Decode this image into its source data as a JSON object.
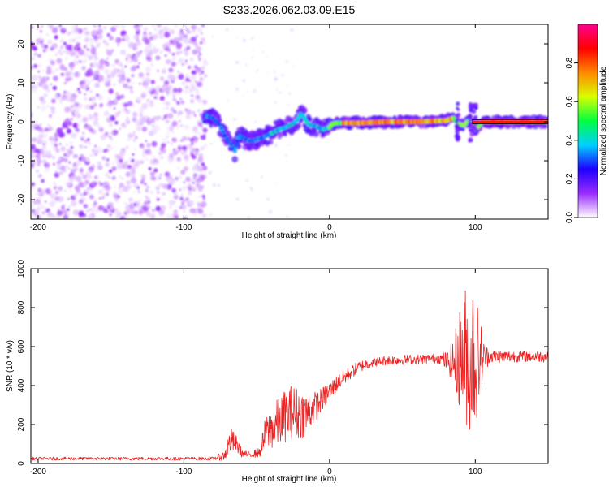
{
  "title": "S233.2026.062.03.09.E15",
  "chart_data": [
    {
      "type": "heatmap",
      "id": "spectrogram",
      "title": "S233.2026.062.03.09.E15",
      "xlabel": "Height of straight line (km)",
      "ylabel": "Frequency (Hz)",
      "xlim": [
        -205,
        150
      ],
      "ylim": [
        -25,
        25
      ],
      "xticks": [
        -200,
        -100,
        0,
        100
      ],
      "yticks": [
        -20,
        -10,
        0,
        10,
        20
      ],
      "colorbar": {
        "label": "Normalized spectral amplitude",
        "range": [
          0,
          1
        ],
        "ticks": [
          "0.0",
          "0.2",
          "0.4",
          "0.6",
          "0.8"
        ],
        "tick_values": [
          0,
          0.2,
          0.4,
          0.6,
          0.8
        ],
        "colors": [
          "#ffffff",
          "#9a2cff",
          "#1e00ff",
          "#00d0ff",
          "#00ff40",
          "#d8ff00",
          "#ff8800",
          "#ff0000",
          "#ff0090"
        ]
      },
      "signal_track": [
        [
          -85,
          1.5
        ],
        [
          -80,
          1.0
        ],
        [
          -75,
          -1.0
        ],
        [
          -72,
          -3.5
        ],
        [
          -68,
          -5.5
        ],
        [
          -65,
          -7.5
        ],
        [
          -62,
          -3.5
        ],
        [
          -58,
          -4.5
        ],
        [
          -54,
          -5.0
        ],
        [
          -50,
          -4.5
        ],
        [
          -45,
          -4.0
        ],
        [
          -40,
          -3.0
        ],
        [
          -35,
          -2.0
        ],
        [
          -30,
          -1.5
        ],
        [
          -25,
          -0.5
        ],
        [
          -22,
          0.5
        ],
        [
          -20,
          2.0
        ],
        [
          -18,
          1.5
        ],
        [
          -15,
          -0.5
        ],
        [
          -12,
          -1.0
        ],
        [
          -10,
          -1.0
        ],
        [
          -5,
          -2.0
        ],
        [
          0,
          -1.5
        ],
        [
          2,
          -0.5
        ],
        [
          5,
          -0.3
        ],
        [
          20,
          -0.3
        ],
        [
          40,
          0.0
        ],
        [
          60,
          0.0
        ],
        [
          80,
          0.3
        ],
        [
          85,
          1.0
        ],
        [
          88,
          -0.5
        ],
        [
          92,
          -1.0
        ],
        [
          96,
          0.5
        ],
        [
          100,
          -2.0
        ],
        [
          105,
          0.0
        ],
        [
          120,
          0.0
        ],
        [
          150,
          0.0
        ]
      ],
      "noise_region_km": [
        -205,
        -85
      ],
      "reference_line_hz": 0
    },
    {
      "type": "line",
      "id": "snr",
      "xlabel": "Height of straight line (km)",
      "ylabel": "SNR (10 * v/v)",
      "xlim": [
        -205,
        150
      ],
      "ylim": [
        0,
        1000
      ],
      "xticks": [
        -200,
        -100,
        0,
        100
      ],
      "yticks": [
        0,
        200,
        400,
        600,
        800,
        1000
      ],
      "series": [
        {
          "name": "SNR",
          "color": "#ee2222",
          "envelope": [
            [
              -205,
              25,
              8
            ],
            [
              -80,
              25,
              8
            ],
            [
              -72,
              40,
              25
            ],
            [
              -68,
              120,
              70
            ],
            [
              -64,
              100,
              45
            ],
            [
              -60,
              50,
              20
            ],
            [
              -55,
              45,
              15
            ],
            [
              -48,
              55,
              25
            ],
            [
              -44,
              150,
              90
            ],
            [
              -40,
              180,
              110
            ],
            [
              -35,
              210,
              130
            ],
            [
              -30,
              250,
              140
            ],
            [
              -25,
              260,
              150
            ],
            [
              -20,
              250,
              130
            ],
            [
              -15,
              260,
              110
            ],
            [
              -10,
              290,
              80
            ],
            [
              -5,
              330,
              60
            ],
            [
              0,
              370,
              50
            ],
            [
              5,
              410,
              45
            ],
            [
              10,
              440,
              40
            ],
            [
              15,
              470,
              35
            ],
            [
              20,
              495,
              30
            ],
            [
              25,
              510,
              28
            ],
            [
              30,
              520,
              25
            ],
            [
              40,
              530,
              25
            ],
            [
              60,
              535,
              25
            ],
            [
              75,
              540,
              25
            ],
            [
              82,
              520,
              60
            ],
            [
              86,
              520,
              160
            ],
            [
              90,
              550,
              280
            ],
            [
              94,
              560,
              380
            ],
            [
              98,
              550,
              420
            ],
            [
              102,
              540,
              280
            ],
            [
              106,
              545,
              80
            ],
            [
              110,
              550,
              35
            ],
            [
              130,
              550,
              30
            ],
            [
              150,
              550,
              30
            ]
          ]
        }
      ]
    }
  ]
}
